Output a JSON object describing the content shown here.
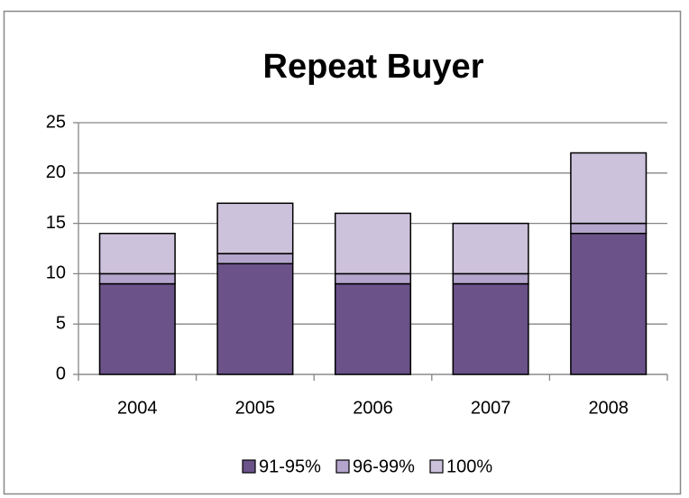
{
  "chart_data": {
    "type": "bar",
    "stacked": true,
    "title": "Repeat Buyer",
    "categories": [
      "2004",
      "2005",
      "2006",
      "2007",
      "2008"
    ],
    "series": [
      {
        "name": "91-95%",
        "color": "#6b5289",
        "values": [
          9,
          11,
          9,
          9,
          14
        ]
      },
      {
        "name": "96-99%",
        "color": "#b4a5cc",
        "values": [
          1,
          1,
          1,
          1,
          1
        ]
      },
      {
        "name": "100%",
        "color": "#cdc2dc",
        "values": [
          4,
          5,
          6,
          5,
          7
        ]
      }
    ],
    "ylim": [
      0,
      25
    ],
    "yticks": [
      0,
      5,
      10,
      15,
      20,
      25
    ],
    "grid": true,
    "legend": "bottom"
  }
}
